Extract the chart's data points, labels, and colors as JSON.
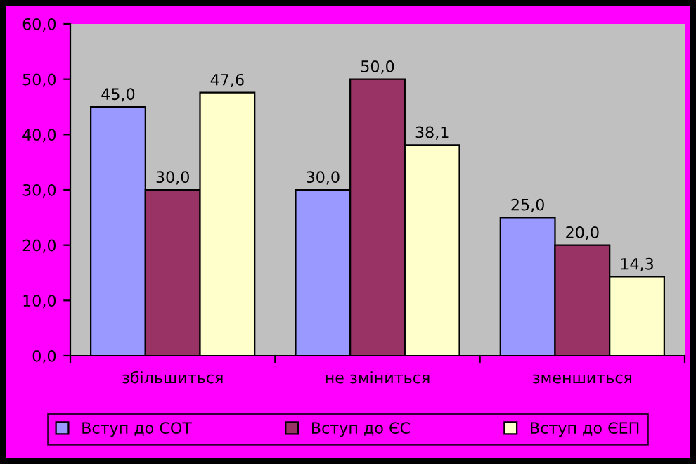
{
  "chart_data": {
    "type": "bar",
    "categories": [
      "збільшиться",
      "не зміниться",
      "зменшиться"
    ],
    "series": [
      {
        "name": "Вступ до СОТ",
        "color": "#9999ff",
        "values": [
          45.0,
          30.0,
          25.0
        ],
        "value_labels": [
          "45,0",
          "30,0",
          "25,0"
        ]
      },
      {
        "name": "Вступ до ЄС",
        "color": "#993366",
        "values": [
          30.0,
          50.0,
          20.0
        ],
        "value_labels": [
          "30,0",
          "50,0",
          "20,0"
        ]
      },
      {
        "name": "Вступ до ЄЕП",
        "color": "#ffffcc",
        "values": [
          47.6,
          38.1,
          14.3
        ],
        "value_labels": [
          "47,6",
          "38,1",
          "14,3"
        ]
      }
    ],
    "ylim": [
      0,
      60
    ],
    "yticks": [
      {
        "value": 0,
        "label": "0,0"
      },
      {
        "value": 10,
        "label": "10,0"
      },
      {
        "value": 20,
        "label": "20,0"
      },
      {
        "value": 30,
        "label": "30,0"
      },
      {
        "value": 40,
        "label": "40,0"
      },
      {
        "value": 50,
        "label": "50,0"
      },
      {
        "value": 60,
        "label": "60,0"
      }
    ],
    "grid": false,
    "legend": "bottom"
  }
}
